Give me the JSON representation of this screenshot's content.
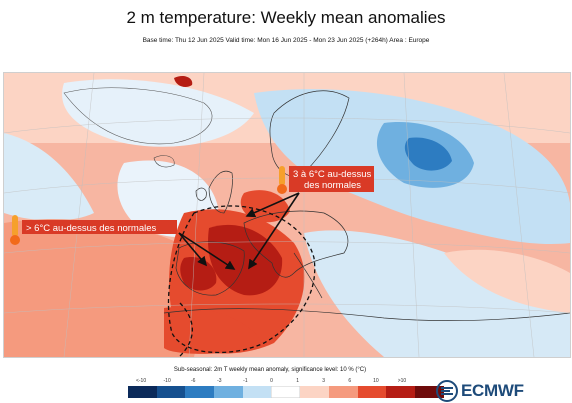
{
  "header": {
    "title": "2 m temperature: Weekly mean anomalies",
    "subtitle": "Base time: Thu 12 Jun 2025 Valid time: Mon 16 Jun 2025 - Mon 23 Jun 2025 (+264h) Area : Europe"
  },
  "map": {
    "region": "Europe",
    "annotations": {
      "west_label": "> 6°C au-dessus des normales",
      "east_label_line1": "3 à 6°C au-dessus",
      "east_label_line2": "des normales",
      "label_box_color": "#d93a26",
      "thermometer_icon": "thermometer-hot-icon"
    }
  },
  "legend": {
    "caption": "Sub-seasonal: 2m T weekly mean anomaly, significance level: 10 % (°C)",
    "ticks": [
      "<-10",
      "-10",
      "-6",
      "-3",
      "-1",
      "0",
      "1",
      "3",
      "6",
      "10",
      ">10"
    ],
    "colors": [
      "#0b2a5a",
      "#16508f",
      "#2d7cc1",
      "#6fb0e0",
      "#c3e0f4",
      "#ffffff",
      "#fcd4c4",
      "#f59a7e",
      "#e54b2e",
      "#b51d14",
      "#6e0b0b"
    ]
  },
  "logo": {
    "text": "ECMWF",
    "icon": "ecmwf-logo-icon"
  }
}
